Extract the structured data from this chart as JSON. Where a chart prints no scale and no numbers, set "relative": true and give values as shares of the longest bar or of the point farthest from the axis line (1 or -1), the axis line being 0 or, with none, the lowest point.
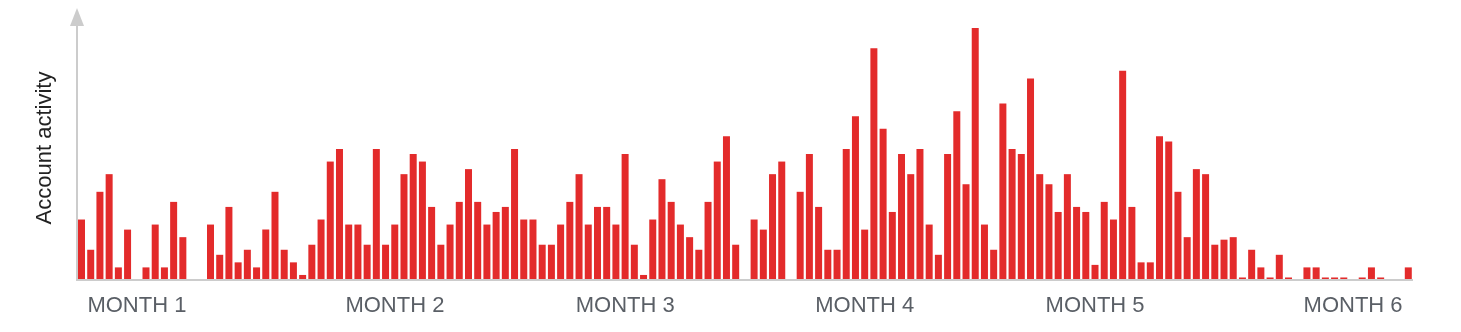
{
  "chart_data": {
    "type": "bar",
    "relative": true,
    "ylabel": "Account activity",
    "color": "#e32b2b",
    "categories": [
      null,
      null,
      null,
      null,
      null,
      null,
      "MONTH 1",
      null,
      null,
      null,
      null,
      null,
      null,
      null,
      null,
      null,
      null,
      null,
      null,
      null,
      null,
      null,
      null,
      null,
      null,
      null,
      null,
      null,
      null,
      null,
      null,
      null,
      null,
      null,
      "MONTH 2",
      null,
      null,
      null,
      null,
      null,
      null,
      null,
      null,
      null,
      null,
      null,
      null,
      null,
      null,
      null,
      null,
      null,
      null,
      null,
      null,
      null,
      null,
      null,
      null,
      "MONTH 3",
      null,
      null,
      null,
      null,
      null,
      null,
      null,
      null,
      null,
      null,
      null,
      null,
      null,
      null,
      null,
      null,
      null,
      null,
      null,
      null,
      null,
      null,
      null,
      null,
      null,
      "MONTH 4",
      null,
      null,
      null,
      null,
      null,
      null,
      null,
      null,
      null,
      null,
      null,
      null,
      null,
      null,
      null,
      null,
      null,
      null,
      null,
      null,
      null,
      null,
      null,
      null,
      "MONTH 5",
      null,
      null,
      null,
      null,
      null,
      null,
      null,
      null,
      null,
      null,
      null,
      null,
      null,
      null,
      null,
      null,
      null,
      null,
      null,
      null,
      null,
      null,
      null,
      null,
      null,
      null,
      null,
      "MONTH 6",
      null,
      null,
      null,
      null,
      null,
      null
    ],
    "values": [
      0.24,
      0.12,
      0.35,
      0.42,
      0.05,
      0.2,
      0,
      0.05,
      0.22,
      0.05,
      0.31,
      0.17,
      0,
      0,
      0.22,
      0.1,
      0.29,
      0.07,
      0.12,
      0.05,
      0.2,
      0.35,
      0.12,
      0.07,
      0.02,
      0.14,
      0.24,
      0.47,
      0.52,
      0.22,
      0.22,
      0.14,
      0.52,
      0.14,
      0.22,
      0.42,
      0.5,
      0.47,
      0.29,
      0.14,
      0.22,
      0.31,
      0.44,
      0.31,
      0.22,
      0.27,
      0.29,
      0.52,
      0.24,
      0.24,
      0.14,
      0.14,
      0.22,
      0.31,
      0.42,
      0.22,
      0.29,
      0.29,
      0.22,
      0.5,
      0.14,
      0.02,
      0.24,
      0.4,
      0.31,
      0.22,
      0.17,
      0.12,
      0.31,
      0.47,
      0.57,
      0.14,
      0,
      0.24,
      0.2,
      0.42,
      0.47,
      0,
      0.35,
      0.5,
      0.29,
      0.12,
      0.12,
      0.52,
      0.65,
      0.2,
      0.92,
      0.6,
      0.27,
      0.5,
      0.42,
      0.52,
      0.22,
      0.1,
      0.5,
      0.67,
      0.38,
      1,
      0.22,
      0.12,
      0.7,
      0.52,
      0.5,
      0.8,
      0.42,
      0.38,
      0.27,
      0.42,
      0.29,
      0.27,
      0.06,
      0.31,
      0.24,
      0.83,
      0.29,
      0.07,
      0.07,
      0.57,
      0.55,
      0.35,
      0.17,
      0.44,
      0.42,
      0.14,
      0.16,
      0.17,
      0.01,
      0.12,
      0.05,
      0.01,
      0.1,
      0.01,
      0,
      0.05,
      0.05,
      0.01,
      0.01,
      0.01,
      0,
      0.01,
      0.05,
      0.01,
      0,
      0,
      0.05
    ]
  }
}
